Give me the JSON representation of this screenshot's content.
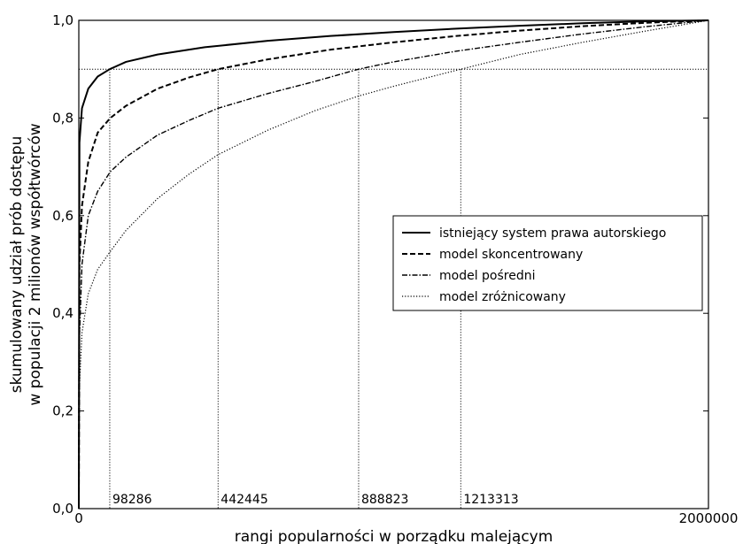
{
  "chart_data": {
    "type": "line",
    "title": "",
    "xlabel": "rangi popularności w porządku malejącym",
    "ylabel_lines": [
      "skumulowany udział prób dostępu",
      "w populacji 2 milionów współtwórców"
    ],
    "xlim": [
      0,
      2000000
    ],
    "ylim": [
      0,
      1.0
    ],
    "x_tick_labels": [
      "0",
      "2000000"
    ],
    "y_ticks": [
      0,
      0.2,
      0.4,
      0.6,
      0.8,
      1.0
    ],
    "y_tick_labels": [
      "0,0",
      "0,2",
      "0,4",
      "0,6",
      "0,8",
      "1,0"
    ],
    "grid": false,
    "legend_position": "center-right",
    "series": [
      {
        "name": "istniejący system prawa autorskiego",
        "style": "solid",
        "x": [
          0,
          2000,
          10000,
          30000,
          60000,
          98286,
          150000,
          250000,
          400000,
          600000,
          800000,
          1000000,
          1200000,
          1400000,
          1600000,
          1800000,
          2000000
        ],
        "y": [
          0,
          0.75,
          0.82,
          0.86,
          0.885,
          0.9,
          0.915,
          0.93,
          0.945,
          0.958,
          0.968,
          0.976,
          0.983,
          0.989,
          0.994,
          0.998,
          1.0
        ]
      },
      {
        "name": "model skoncentrowany",
        "style": "dashed",
        "x": [
          0,
          2000,
          10000,
          30000,
          60000,
          100000,
          150000,
          250000,
          350000,
          442445,
          600000,
          800000,
          1000000,
          1200000,
          1400000,
          1600000,
          1800000,
          2000000
        ],
        "y": [
          0,
          0.5,
          0.62,
          0.71,
          0.77,
          0.8,
          0.825,
          0.86,
          0.883,
          0.9,
          0.92,
          0.94,
          0.955,
          0.968,
          0.979,
          0.988,
          0.995,
          1.0
        ]
      },
      {
        "name": "model pośredni",
        "style": "dashdot",
        "x": [
          0,
          2000,
          10000,
          30000,
          60000,
          100000,
          150000,
          250000,
          350000,
          442445,
          600000,
          750000,
          888823,
          1000000,
          1200000,
          1400000,
          1600000,
          1800000,
          2000000
        ],
        "y": [
          0,
          0.35,
          0.5,
          0.6,
          0.65,
          0.69,
          0.72,
          0.765,
          0.795,
          0.82,
          0.85,
          0.875,
          0.9,
          0.915,
          0.937,
          0.955,
          0.972,
          0.987,
          1.0
        ]
      },
      {
        "name": "model zróżnicowany",
        "style": "dotted",
        "x": [
          0,
          2000,
          10000,
          30000,
          60000,
          98286,
          150000,
          250000,
          350000,
          442445,
          600000,
          750000,
          888823,
          1000000,
          1213313,
          1400000,
          1600000,
          1800000,
          2000000
        ],
        "y": [
          0,
          0.25,
          0.36,
          0.44,
          0.49,
          0.525,
          0.57,
          0.635,
          0.685,
          0.725,
          0.775,
          0.815,
          0.845,
          0.865,
          0.9,
          0.93,
          0.955,
          0.978,
          1.0
        ]
      }
    ],
    "reference_line_y": 0.9,
    "annotations": [
      {
        "x": 98286,
        "label": "98286"
      },
      {
        "x": 442445,
        "label": "442445"
      },
      {
        "x": 888823,
        "label": "888823"
      },
      {
        "x": 1213313,
        "label": "1213313"
      }
    ]
  }
}
